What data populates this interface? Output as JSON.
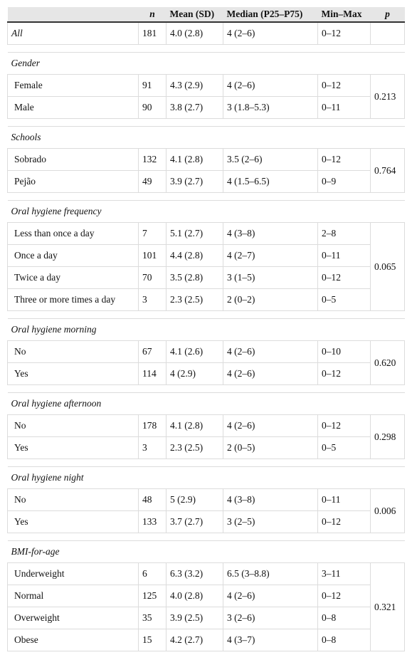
{
  "table": {
    "header": [
      "n",
      "Mean (SD)",
      "Median (P25–P75)",
      "Min–Max",
      "p"
    ],
    "all": {
      "label": "All",
      "cells": [
        "181",
        "4.0 (2.8)",
        "4 (2–6)",
        "0–12"
      ]
    },
    "groups": [
      {
        "title": "Gender",
        "p": "0.213",
        "rows": [
          {
            "label": "Female",
            "cells": [
              "91",
              "4.3 (2.9)",
              "4 (2–6)",
              "0–12"
            ]
          },
          {
            "label": "Male",
            "cells": [
              "90",
              "3.8 (2.7)",
              "3 (1.8–5.3)",
              "0–11"
            ]
          }
        ]
      },
      {
        "title": "Schools",
        "p": "0.764",
        "rows": [
          {
            "label": "Sobrado",
            "cells": [
              "132",
              "4.1 (2.8)",
              "3.5 (2–6)",
              "0–12"
            ]
          },
          {
            "label": "Pejão",
            "cells": [
              "49",
              "3.9 (2.7)",
              "4 (1.5–6.5)",
              "0–9"
            ]
          }
        ]
      },
      {
        "title": "Oral hygiene frequency",
        "p": "0.065",
        "rows": [
          {
            "label": "Less than once a day",
            "cells": [
              "7",
              "5.1 (2.7)",
              "4 (3–8)",
              "2–8"
            ]
          },
          {
            "label": "Once a day",
            "cells": [
              "101",
              "4.4 (2.8)",
              "4 (2–7)",
              "0–11"
            ]
          },
          {
            "label": "Twice a day",
            "cells": [
              "70",
              "3.5 (2.8)",
              "3 (1–5)",
              "0–12"
            ]
          },
          {
            "label": "Three or more times a day",
            "cells": [
              "3",
              "2.3 (2.5)",
              "2 (0–2)",
              "0–5"
            ]
          }
        ]
      },
      {
        "title": "Oral hygiene morning",
        "p": "0.620",
        "rows": [
          {
            "label": "No",
            "cells": [
              "67",
              "4.1 (2.6)",
              "4 (2–6)",
              "0–10"
            ]
          },
          {
            "label": "Yes",
            "cells": [
              "114",
              "4 (2.9)",
              "4 (2–6)",
              "0–12"
            ]
          }
        ]
      },
      {
        "title": "Oral hygiene afternoon",
        "p": "0.298",
        "rows": [
          {
            "label": "No",
            "cells": [
              "178",
              "4.1 (2.8)",
              "4 (2–6)",
              "0–12"
            ]
          },
          {
            "label": "Yes",
            "cells": [
              "3",
              "2.3 (2.5)",
              "2 (0–5)",
              "0–5"
            ]
          }
        ]
      },
      {
        "title": "Oral hygiene night",
        "p": "0.006",
        "rows": [
          {
            "label": "No",
            "cells": [
              "48",
              "5 (2.9)",
              "4 (3–8)",
              "0–11"
            ]
          },
          {
            "label": "Yes",
            "cells": [
              "133",
              "3.7 (2.7)",
              "3 (2–5)",
              "0–12"
            ]
          }
        ]
      },
      {
        "title": "BMI-for-age",
        "p": "0.321",
        "rows": [
          {
            "label": "Underweight",
            "cells": [
              "6",
              "6.3 (3.2)",
              "6.5 (3–8.8)",
              "3–11"
            ]
          },
          {
            "label": "Normal",
            "cells": [
              "125",
              "4.0 (2.8)",
              "4 (2–6)",
              "0–12"
            ]
          },
          {
            "label": "Overweight",
            "cells": [
              "35",
              "3.9 (2.5)",
              "3 (2–6)",
              "0–8"
            ]
          },
          {
            "label": "Obese",
            "cells": [
              "15",
              "4.2 (2.7)",
              "4 (3–7)",
              "0–8"
            ]
          }
        ]
      }
    ]
  }
}
